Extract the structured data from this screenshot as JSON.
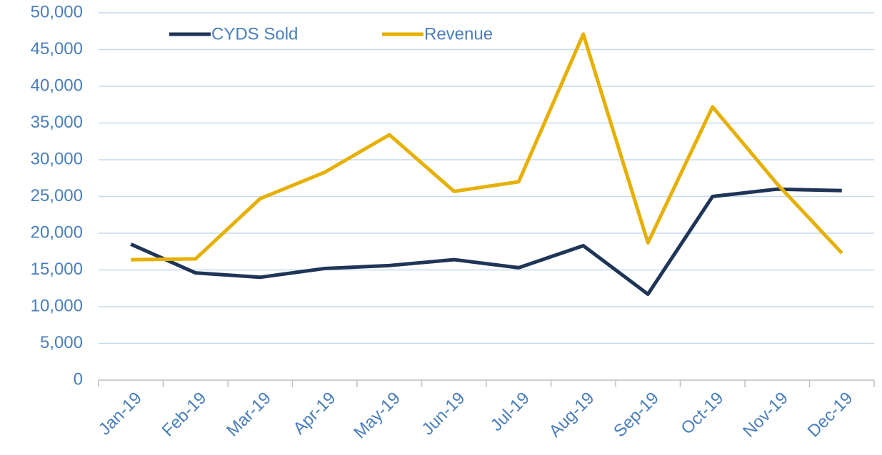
{
  "chart_data": {
    "type": "line",
    "categories": [
      "Jan-19",
      "Feb-19",
      "Mar-19",
      "Apr-19",
      "May-19",
      "Jun-19",
      "Jul-19",
      "Aug-19",
      "Sep-19",
      "Oct-19",
      "Nov-19",
      "Dec-19"
    ],
    "series": [
      {
        "name": "CYDS Sold",
        "color": "#1f3557",
        "values": [
          18500,
          14600,
          14000,
          15200,
          15600,
          16400,
          15300,
          18300,
          11700,
          25000,
          26000,
          25800
        ]
      },
      {
        "name": "Revenue",
        "color": "#e6b000",
        "values": [
          16400,
          16500,
          24700,
          28300,
          33400,
          25700,
          27000,
          47100,
          18700,
          37200,
          26700,
          17300
        ]
      }
    ],
    "ylim": [
      0,
      50000
    ],
    "yticks": [
      0,
      {
        "value": 5000,
        "label": "5,000"
      },
      {
        "value": 10000,
        "label": "10,000"
      },
      {
        "value": 15000,
        "label": "15,000"
      },
      {
        "value": 20000,
        "label": "20,000"
      },
      {
        "value": 25000,
        "label": "25,000"
      },
      {
        "value": 30000,
        "label": "30,000"
      },
      {
        "value": 35000,
        "label": "35,000"
      },
      {
        "value": 40000,
        "label": "40,000"
      },
      {
        "value": 45000,
        "label": "45,000"
      },
      {
        "value": 50000,
        "label": "50,000"
      }
    ],
    "grid": true
  }
}
